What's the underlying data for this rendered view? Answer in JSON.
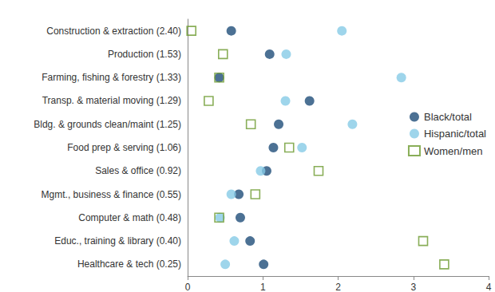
{
  "chart_data": {
    "type": "scatter",
    "categories": [
      "Construction & extraction (2.40)",
      "Production (1.53)",
      "Farming, fishing & forestry (1.33)",
      "Transp. & material moving (1.29)",
      "Bldg. & grounds clean/maint (1.25)",
      "Food prep & serving (1.06)",
      "Sales & office (0.92)",
      "Mgmt., business & finance (0.55)",
      "Computer & math (0.48)",
      "Educ., training & library (0.40)",
      "Healthcare & tech (0.25)"
    ],
    "series": [
      {
        "name": "Black/total",
        "color": "#1f4e79",
        "marker": "circle",
        "values": [
          0.58,
          1.09,
          0.42,
          1.62,
          1.21,
          1.14,
          1.05,
          0.68,
          0.7,
          0.83,
          1.01
        ]
      },
      {
        "name": "Hispanic/total",
        "color": "#86cbe6",
        "marker": "circle",
        "values": [
          2.05,
          1.31,
          2.84,
          1.3,
          2.19,
          1.52,
          0.97,
          0.58,
          0.43,
          0.62,
          0.5
        ]
      },
      {
        "name": "Women/men",
        "color": "#6b9a2e",
        "marker": "open_square",
        "values": [
          0.05,
          0.47,
          0.42,
          0.28,
          0.84,
          1.35,
          1.74,
          0.9,
          0.42,
          3.13,
          3.41
        ]
      }
    ],
    "xlim": [
      0,
      4
    ],
    "xticks": [
      0,
      1,
      2,
      3,
      4
    ],
    "grid": false,
    "legend": "right"
  }
}
